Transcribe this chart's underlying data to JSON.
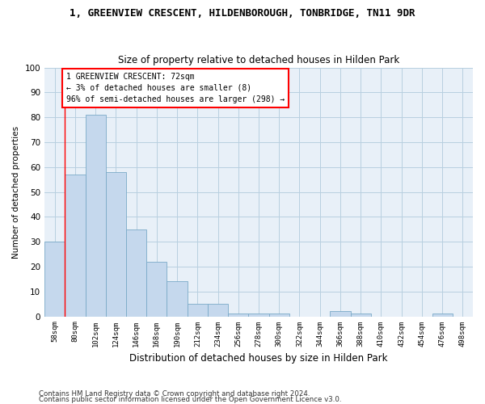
{
  "title1": "1, GREENVIEW CRESCENT, HILDENBOROUGH, TONBRIDGE, TN11 9DR",
  "title2": "Size of property relative to detached houses in Hilden Park",
  "xlabel": "Distribution of detached houses by size in Hilden Park",
  "ylabel": "Number of detached properties",
  "categories": [
    "58sqm",
    "80sqm",
    "102sqm",
    "124sqm",
    "146sqm",
    "168sqm",
    "190sqm",
    "212sqm",
    "234sqm",
    "256sqm",
    "278sqm",
    "300sqm",
    "322sqm",
    "344sqm",
    "366sqm",
    "388sqm",
    "410sqm",
    "432sqm",
    "454sqm",
    "476sqm",
    "498sqm"
  ],
  "values": [
    30,
    57,
    81,
    58,
    35,
    22,
    14,
    5,
    5,
    1,
    1,
    1,
    0,
    0,
    2,
    1,
    0,
    0,
    0,
    1,
    0
  ],
  "bar_color": "#c5d8ed",
  "bar_edge_color": "#7aaac8",
  "annotation_text": "1 GREENVIEW CRESCENT: 72sqm\n← 3% of detached houses are smaller (8)\n96% of semi-detached houses are larger (298) →",
  "ylim": [
    0,
    100
  ],
  "yticks": [
    0,
    10,
    20,
    30,
    40,
    50,
    60,
    70,
    80,
    90,
    100
  ],
  "grid_color": "#b8cfe0",
  "background_color": "#e8f0f8",
  "footer1": "Contains HM Land Registry data © Crown copyright and database right 2024.",
  "footer2": "Contains public sector information licensed under the Open Government Licence v3.0."
}
